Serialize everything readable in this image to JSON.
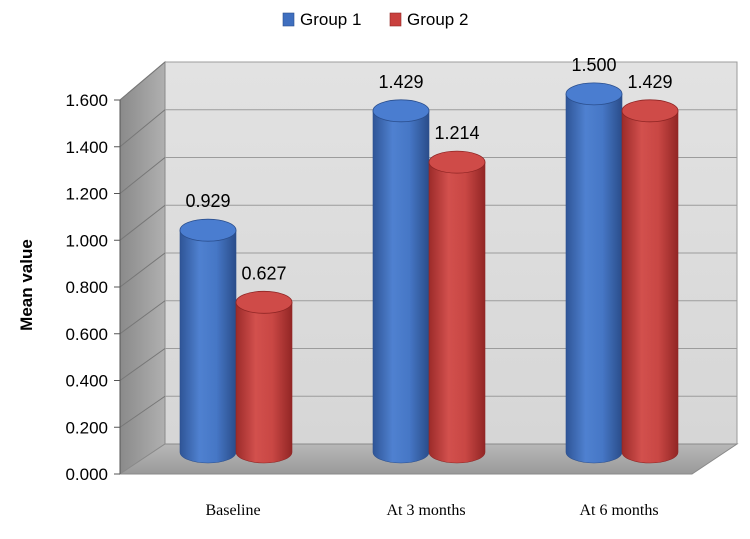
{
  "chart_data": {
    "type": "bar",
    "style": "3d-cylinder",
    "categories": [
      "Baseline",
      "At 3 months",
      "At 6 months"
    ],
    "series": [
      {
        "name": "Group 1",
        "values": [
          0.929,
          1.429,
          1.5
        ],
        "labels": [
          "0.929",
          "1.429",
          "1.500"
        ],
        "color": "#3f6fbf"
      },
      {
        "name": "Group 2",
        "values": [
          0.627,
          1.214,
          1.429
        ],
        "labels": [
          "0.627",
          "1.214",
          "1.429"
        ],
        "color": "#c9403e"
      }
    ],
    "title": "",
    "xlabel": "",
    "ylabel": "Mean value",
    "ylim": [
      0,
      1.6
    ],
    "yticks": [
      "0.000",
      "0.200",
      "0.400",
      "0.600",
      "0.800",
      "1.000",
      "1.200",
      "1.400",
      "1.600"
    ],
    "grid": true,
    "legend_position": "top-center"
  }
}
